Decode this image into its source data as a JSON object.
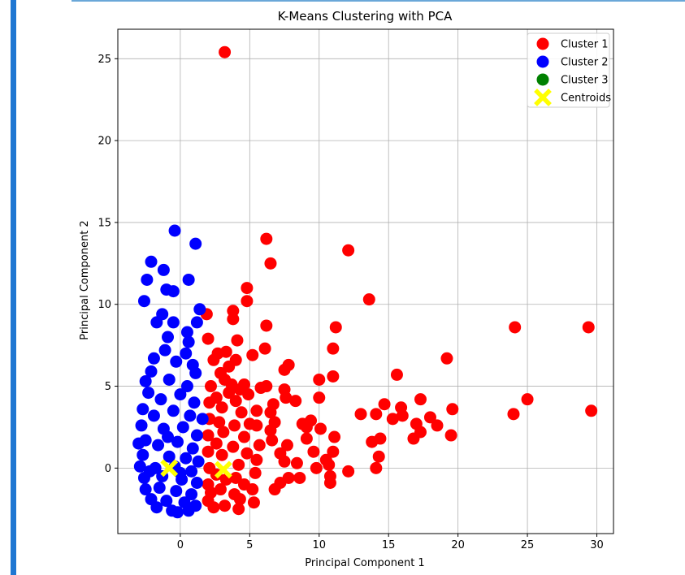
{
  "cell": {
    "accent_color": "#1f77d2"
  },
  "chart_data": {
    "type": "scatter",
    "title": "K-Means Clustering with PCA",
    "xlabel": "Principal Component 1",
    "ylabel": "Principal Component 2",
    "xlim": [
      -4.5,
      31.2
    ],
    "ylim": [
      -4.0,
      26.8
    ],
    "xticks": [
      0,
      5,
      10,
      15,
      20,
      25,
      30
    ],
    "yticks": [
      0,
      5,
      10,
      15,
      20,
      25
    ],
    "grid": true,
    "legend_position": "top-right",
    "series": [
      {
        "name": "Cluster 1",
        "color": "#ff0000",
        "marker": "circle",
        "points": [
          [
            3.2,
            25.4
          ],
          [
            6.2,
            14.0
          ],
          [
            6.5,
            12.5
          ],
          [
            12.1,
            13.3
          ],
          [
            13.6,
            10.3
          ],
          [
            4.8,
            11.0
          ],
          [
            4.8,
            10.2
          ],
          [
            3.8,
            9.6
          ],
          [
            3.8,
            9.1
          ],
          [
            1.9,
            9.4
          ],
          [
            6.2,
            8.7
          ],
          [
            4.1,
            7.8
          ],
          [
            2.0,
            7.9
          ],
          [
            6.1,
            7.3
          ],
          [
            5.2,
            6.9
          ],
          [
            2.4,
            6.6
          ],
          [
            2.7,
            7.0
          ],
          [
            3.3,
            7.1
          ],
          [
            4.0,
            6.6
          ],
          [
            3.5,
            6.2
          ],
          [
            2.9,
            5.8
          ],
          [
            7.8,
            6.3
          ],
          [
            7.5,
            6.0
          ],
          [
            7.5,
            4.8
          ],
          [
            5.8,
            4.9
          ],
          [
            6.2,
            5.0
          ],
          [
            4.6,
            5.1
          ],
          [
            3.7,
            5.1
          ],
          [
            8.3,
            4.1
          ],
          [
            7.6,
            4.3
          ],
          [
            4.9,
            4.5
          ],
          [
            11.2,
            8.6
          ],
          [
            11.0,
            7.3
          ],
          [
            11.0,
            5.6
          ],
          [
            10.0,
            5.4
          ],
          [
            10.0,
            4.3
          ],
          [
            15.6,
            5.7
          ],
          [
            19.2,
            6.7
          ],
          [
            24.1,
            8.6
          ],
          [
            29.4,
            8.6
          ],
          [
            25.0,
            4.2
          ],
          [
            24.0,
            3.3
          ],
          [
            29.6,
            3.5
          ],
          [
            19.6,
            3.6
          ],
          [
            17.3,
            4.2
          ],
          [
            14.7,
            3.9
          ],
          [
            15.9,
            3.7
          ],
          [
            13.0,
            3.3
          ],
          [
            14.1,
            3.3
          ],
          [
            15.3,
            3.0
          ],
          [
            16.0,
            3.2
          ],
          [
            18.0,
            3.1
          ],
          [
            17.0,
            2.7
          ],
          [
            18.5,
            2.6
          ],
          [
            19.5,
            2.0
          ],
          [
            17.3,
            2.2
          ],
          [
            16.8,
            1.8
          ],
          [
            14.4,
            1.8
          ],
          [
            13.8,
            1.6
          ],
          [
            14.3,
            0.7
          ],
          [
            14.1,
            0.0
          ],
          [
            12.1,
            -0.2
          ],
          [
            11.1,
            1.9
          ],
          [
            11.0,
            1.0
          ],
          [
            10.5,
            0.5
          ],
          [
            10.7,
            0.2
          ],
          [
            10.8,
            -0.5
          ],
          [
            10.8,
            -0.9
          ],
          [
            10.1,
            2.4
          ],
          [
            9.6,
            1.0
          ],
          [
            9.1,
            1.8
          ],
          [
            9.4,
            2.9
          ],
          [
            8.8,
            2.7
          ],
          [
            9.1,
            2.5
          ],
          [
            9.8,
            0.0
          ],
          [
            8.4,
            0.3
          ],
          [
            8.6,
            -0.6
          ],
          [
            7.2,
            0.9
          ],
          [
            7.7,
            1.4
          ],
          [
            6.6,
            1.7
          ],
          [
            6.5,
            2.3
          ],
          [
            6.8,
            2.8
          ],
          [
            6.5,
            3.4
          ],
          [
            6.7,
            3.9
          ],
          [
            5.5,
            3.5
          ],
          [
            5.5,
            2.6
          ],
          [
            5.7,
            1.4
          ],
          [
            5.5,
            0.5
          ],
          [
            5.4,
            -0.3
          ],
          [
            7.5,
            0.4
          ],
          [
            7.8,
            -0.6
          ],
          [
            7.2,
            -0.9
          ],
          [
            6.8,
            -1.3
          ],
          [
            5.2,
            -1.3
          ],
          [
            5.3,
            -2.1
          ],
          [
            4.3,
            -1.9
          ],
          [
            3.9,
            -1.6
          ],
          [
            2.9,
            -1.3
          ],
          [
            2.2,
            -1.5
          ],
          [
            2.0,
            -2.0
          ],
          [
            2.4,
            -2.4
          ],
          [
            3.2,
            -2.3
          ],
          [
            4.2,
            -2.5
          ],
          [
            2.0,
            -1.0
          ],
          [
            2.1,
            0.0
          ],
          [
            2.0,
            1.0
          ],
          [
            2.0,
            2.0
          ],
          [
            2.1,
            3.0
          ],
          [
            2.1,
            4.0
          ],
          [
            2.2,
            5.0
          ],
          [
            2.6,
            4.3
          ],
          [
            3.0,
            3.7
          ],
          [
            3.5,
            4.6
          ],
          [
            4.0,
            4.1
          ],
          [
            4.4,
            3.4
          ],
          [
            3.9,
            2.6
          ],
          [
            3.1,
            2.2
          ],
          [
            2.6,
            1.5
          ],
          [
            3.0,
            0.8
          ],
          [
            3.8,
            1.3
          ],
          [
            4.6,
            1.9
          ],
          [
            4.8,
            0.9
          ],
          [
            4.2,
            0.2
          ],
          [
            4.0,
            -0.6
          ],
          [
            4.6,
            -1.0
          ],
          [
            3.3,
            -0.7
          ],
          [
            2.6,
            -0.4
          ],
          [
            2.8,
            2.8
          ],
          [
            5.0,
            2.7
          ],
          [
            4.3,
            4.8
          ],
          [
            3.2,
            5.4
          ]
        ]
      },
      {
        "name": "Cluster 2",
        "color": "#0000ff",
        "marker": "circle",
        "points": [
          [
            -0.4,
            14.5
          ],
          [
            1.1,
            13.7
          ],
          [
            -2.1,
            12.6
          ],
          [
            -1.2,
            12.1
          ],
          [
            -2.4,
            11.5
          ],
          [
            0.6,
            11.5
          ],
          [
            -1.0,
            10.9
          ],
          [
            -0.5,
            10.8
          ],
          [
            -2.6,
            10.2
          ],
          [
            1.4,
            9.7
          ],
          [
            -1.3,
            9.4
          ],
          [
            1.2,
            8.9
          ],
          [
            -0.5,
            8.9
          ],
          [
            -1.7,
            8.9
          ],
          [
            0.5,
            8.3
          ],
          [
            -0.9,
            8.0
          ],
          [
            0.6,
            7.7
          ],
          [
            -1.1,
            7.2
          ],
          [
            0.4,
            7.0
          ],
          [
            -1.9,
            6.7
          ],
          [
            0.9,
            6.3
          ],
          [
            -0.3,
            6.5
          ],
          [
            -2.1,
            5.9
          ],
          [
            1.1,
            5.8
          ],
          [
            -2.5,
            5.3
          ],
          [
            -0.8,
            5.4
          ],
          [
            0.5,
            5.0
          ],
          [
            -2.3,
            4.6
          ],
          [
            -1.4,
            4.2
          ],
          [
            0.0,
            4.5
          ],
          [
            1.0,
            4.0
          ],
          [
            -2.7,
            3.6
          ],
          [
            -1.9,
            3.2
          ],
          [
            -0.5,
            3.5
          ],
          [
            0.7,
            3.2
          ],
          [
            1.6,
            3.0
          ],
          [
            -2.8,
            2.6
          ],
          [
            -1.2,
            2.4
          ],
          [
            0.2,
            2.5
          ],
          [
            1.2,
            2.0
          ],
          [
            -2.5,
            1.7
          ],
          [
            -3.0,
            1.5
          ],
          [
            -1.6,
            1.4
          ],
          [
            -0.2,
            1.6
          ],
          [
            0.9,
            1.2
          ],
          [
            -2.7,
            0.8
          ],
          [
            -0.8,
            0.7
          ],
          [
            0.4,
            0.6
          ],
          [
            1.3,
            0.4
          ],
          [
            -2.9,
            0.1
          ],
          [
            -1.8,
            0.0
          ],
          [
            -0.4,
            0.1
          ],
          [
            0.8,
            -0.2
          ],
          [
            -2.6,
            -0.6
          ],
          [
            -1.3,
            -0.5
          ],
          [
            0.1,
            -0.7
          ],
          [
            1.2,
            -0.9
          ],
          [
            -2.5,
            -1.3
          ],
          [
            -1.5,
            -1.2
          ],
          [
            -0.3,
            -1.4
          ],
          [
            0.8,
            -1.6
          ],
          [
            -2.1,
            -1.9
          ],
          [
            -1.0,
            -2.0
          ],
          [
            0.3,
            -2.1
          ],
          [
            1.1,
            -2.3
          ],
          [
            -1.7,
            -2.4
          ],
          [
            -0.6,
            -2.6
          ],
          [
            -0.2,
            -2.7
          ],
          [
            0.6,
            -2.6
          ],
          [
            -2.2,
            -0.2
          ],
          [
            -0.9,
            1.9
          ],
          [
            0.0,
            -0.3
          ]
        ]
      },
      {
        "name": "Cluster 3",
        "color": "#008000",
        "marker": "circle",
        "points": []
      },
      {
        "name": "Centroids",
        "color": "#ffff00",
        "marker": "x",
        "points": [
          [
            -0.8,
            0.0
          ],
          [
            3.1,
            -0.1
          ]
        ]
      }
    ]
  }
}
